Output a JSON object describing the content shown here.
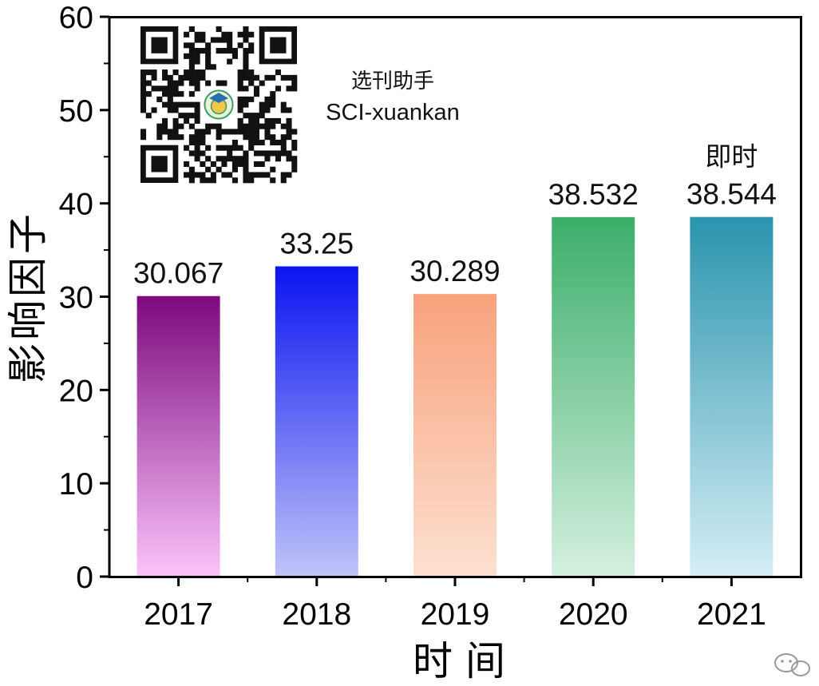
{
  "chart_data": {
    "type": "bar",
    "categories": [
      "2017",
      "2018",
      "2019",
      "2020",
      "2021"
    ],
    "values": [
      30.067,
      33.25,
      30.289,
      38.532,
      38.544
    ],
    "value_labels": [
      "30.067",
      "33.25",
      "30.289",
      "38.532",
      "38.544"
    ],
    "bar_colors": [
      {
        "top": "#7d0a7e",
        "bottom": "#fbc3fb"
      },
      {
        "top": "#0a14f0",
        "bottom": "#c0c4f8"
      },
      {
        "top": "#f8a27c",
        "bottom": "#fde0d1"
      },
      {
        "top": "#3cae6a",
        "bottom": "#d4f0df"
      },
      {
        "top": "#2a94ae",
        "bottom": "#d5eef5"
      }
    ],
    "xlabel": "时 间",
    "ylabel": "影响因子",
    "ylim": [
      0,
      60
    ],
    "yticks": [
      0,
      10,
      20,
      30,
      40,
      50,
      60
    ],
    "yticks_minor": [
      5,
      15,
      25,
      35,
      45,
      55
    ],
    "grid": false,
    "annotations": [
      {
        "category": "2021",
        "text": "即时"
      }
    ]
  },
  "watermark": {
    "line1": "选刊助手",
    "line2": "SCI-xuankan",
    "qr_icon": "qr-code-icon"
  }
}
